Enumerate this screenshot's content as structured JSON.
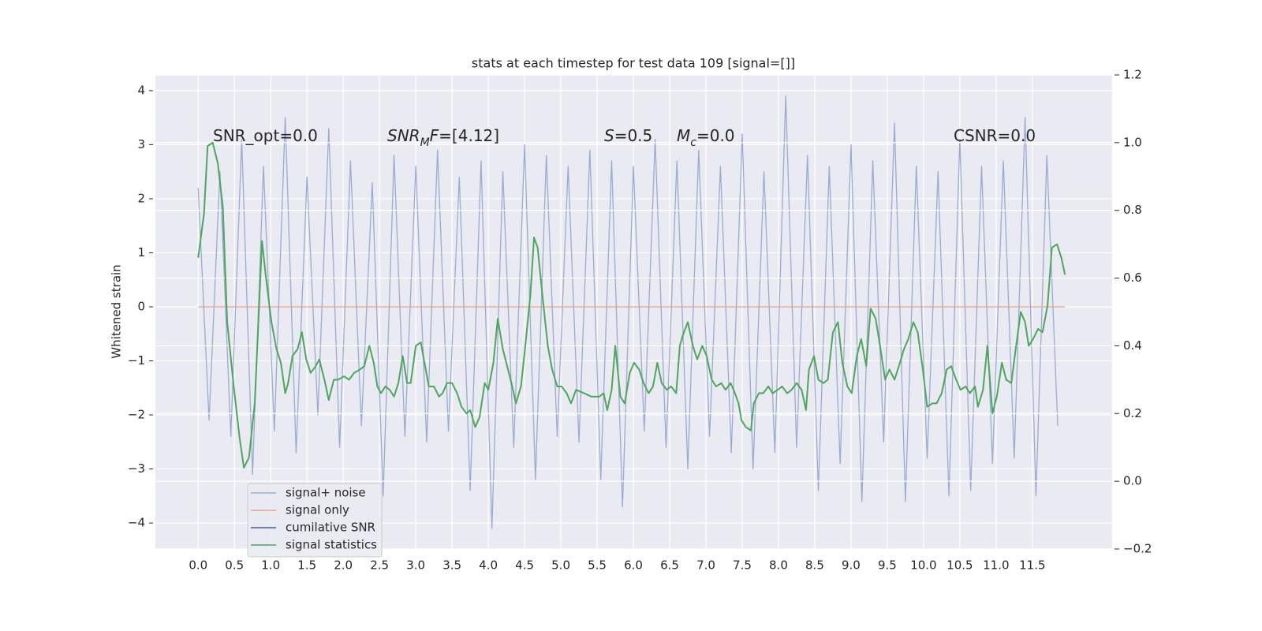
{
  "chart_data": {
    "type": "line",
    "title": "stats at each timestep for test data 109 [signal=[]]",
    "y_label": "Whitened strain",
    "grid": true,
    "legend": "lower left",
    "xlim": [
      -0.59,
      12.6
    ],
    "xticks": [
      {
        "value": 0,
        "label": "0.0"
      },
      0.5,
      {
        "value": 1,
        "label": "1.0"
      },
      1.5,
      {
        "value": 2,
        "label": "2.0"
      },
      2.5,
      {
        "value": 3,
        "label": "3.0"
      },
      3.5,
      {
        "value": 4,
        "label": "4.0"
      },
      4.5,
      {
        "value": 5,
        "label": "5.0"
      },
      5.5,
      {
        "value": 6,
        "label": "6.0"
      },
      6.5,
      {
        "value": 7,
        "label": "7.0"
      },
      7.5,
      {
        "value": 8,
        "label": "8.0"
      },
      8.5,
      {
        "value": 9,
        "label": "9.0"
      },
      9.5,
      {
        "value": 10,
        "label": "10.0"
      },
      10.5,
      {
        "value": 11,
        "label": "11.0"
      },
      11.5
    ],
    "ylim": [
      -4.48,
      4.29
    ],
    "yticks": [
      {
        "value": -4,
        "label": "−4"
      },
      {
        "value": -3,
        "label": "−3"
      },
      {
        "value": -2,
        "label": "−2"
      },
      {
        "value": -1,
        "label": "−1"
      },
      0,
      1,
      2,
      3,
      4
    ],
    "y2lim": [
      -0.2,
      1.2
    ],
    "y2ticks": [
      {
        "value": -0.2,
        "label": "−0.2"
      },
      {
        "value": 0,
        "label": "0.0"
      },
      0.2,
      0.4,
      0.6,
      0.8,
      {
        "value": 1,
        "label": "1.0"
      },
      1.2
    ],
    "annotations": [
      [
        {
          "text": "SNR_opt=0.0"
        }
      ],
      [
        {
          "text": "SNR",
          "style": "italic"
        },
        {
          "text": "M",
          "style": "sub"
        },
        {
          "text": "F",
          "style": "italic"
        },
        {
          "text": "=[4.12]"
        }
      ],
      [
        {
          "text": "S",
          "style": "italic"
        },
        {
          "text": "=0.5"
        }
      ],
      [
        {
          "text": "M",
          "style": "italic"
        },
        {
          "text": "c",
          "style": "sub"
        },
        {
          "text": "=0.0"
        }
      ],
      [
        {
          "text": "CSNR=0.0"
        }
      ]
    ],
    "series": [
      {
        "name": "signal+ noise",
        "color": "#9aabd2",
        "x": [
          0,
          0.15,
          0.3,
          0.45,
          0.6,
          0.75,
          0.9,
          1.05,
          1.2,
          1.35,
          1.5,
          1.65,
          1.8,
          1.95,
          2.1,
          2.25,
          2.4,
          2.55,
          2.7,
          2.85,
          3,
          3.15,
          3.3,
          3.45,
          3.6,
          3.75,
          3.9,
          4.05,
          4.2,
          4.35,
          4.5,
          4.65,
          4.8,
          4.95,
          5.1,
          5.25,
          5.4,
          5.55,
          5.7,
          5.85,
          6,
          6.15,
          6.3,
          6.45,
          6.6,
          6.75,
          6.9,
          7.05,
          7.2,
          7.35,
          7.5,
          7.65,
          7.8,
          7.95,
          8.1,
          8.25,
          8.4,
          8.55,
          8.7,
          8.85,
          9,
          9.15,
          9.3,
          9.45,
          9.6,
          9.75,
          9.9,
          10.05,
          10.2,
          10.35,
          10.5,
          10.65,
          10.8,
          10.95,
          11.1,
          11.25,
          11.4,
          11.55,
          11.7,
          11.85
        ],
        "values": [
          2.2,
          -2.1,
          2.5,
          -2.4,
          3.1,
          -3.1,
          2.6,
          -2.3,
          3.5,
          -2.7,
          2.4,
          -2.0,
          3.3,
          -2.6,
          2.7,
          -2.2,
          2.3,
          -3.5,
          2.8,
          -2.4,
          2.6,
          -2.5,
          2.9,
          -2.3,
          2.4,
          -3.4,
          2.7,
          -4.1,
          2.5,
          -2.6,
          3.0,
          -3.2,
          2.8,
          -2.4,
          2.6,
          -2.5,
          2.9,
          -3.2,
          2.7,
          -3.7,
          2.6,
          -2.3,
          3.1,
          -2.6,
          2.7,
          -3.0,
          2.9,
          -2.4,
          2.6,
          -2.7,
          3.2,
          -3.0,
          2.5,
          -2.7,
          3.9,
          -2.6,
          2.8,
          -3.4,
          2.6,
          -2.9,
          3.0,
          -3.6,
          2.7,
          -2.5,
          3.4,
          -3.6,
          2.6,
          -2.8,
          2.5,
          -3.5,
          3.1,
          -3.4,
          2.6,
          -2.9,
          2.7,
          -2.8,
          3.5,
          -3.5,
          2.8,
          -2.2
        ]
      },
      {
        "name": "signal only",
        "color": "#e2a58e",
        "x": [
          0,
          11.95
        ],
        "values": [
          0,
          0
        ]
      },
      {
        "name": "cumilative SNR",
        "color": "#3d5fa3",
        "x": [],
        "values": []
      },
      {
        "name": "signal statistics",
        "color": "#4fa55e",
        "axis": "y2",
        "x": [
          0,
          0.08,
          0.13,
          0.2,
          0.27,
          0.34,
          0.4,
          0.49,
          0.57,
          0.63,
          0.7,
          0.78,
          0.88,
          0.93,
          1.01,
          1.08,
          1.14,
          1.2,
          1.24,
          1.3,
          1.37,
          1.43,
          1.49,
          1.55,
          1.62,
          1.67,
          1.74,
          1.8,
          1.87,
          1.93,
          2.01,
          2.08,
          2.15,
          2.23,
          2.29,
          2.36,
          2.42,
          2.47,
          2.52,
          2.58,
          2.64,
          2.7,
          2.76,
          2.82,
          2.88,
          2.93,
          3,
          3.07,
          3.12,
          3.18,
          3.25,
          3.32,
          3.37,
          3.43,
          3.5,
          3.57,
          3.63,
          3.7,
          3.75,
          3.82,
          3.88,
          3.95,
          4,
          4.07,
          4.13,
          4.2,
          4.26,
          4.33,
          4.38,
          4.45,
          4.51,
          4.58,
          4.63,
          4.68,
          4.75,
          4.82,
          4.88,
          4.95,
          5.01,
          5.08,
          5.14,
          5.21,
          5.32,
          5.42,
          5.53,
          5.59,
          5.64,
          5.7,
          5.75,
          5.82,
          5.88,
          5.95,
          6.01,
          6.08,
          6.14,
          6.21,
          6.27,
          6.33,
          6.39,
          6.46,
          6.52,
          6.59,
          6.64,
          6.68,
          6.75,
          6.82,
          6.88,
          6.95,
          7.01,
          7.08,
          7.14,
          7.21,
          7.27,
          7.34,
          7.4,
          7.45,
          7.49,
          7.55,
          7.62,
          7.66,
          7.73,
          7.79,
          7.86,
          7.92,
          7.99,
          8.05,
          8.12,
          8.18,
          8.25,
          8.32,
          8.38,
          8.42,
          8.49,
          8.55,
          8.62,
          8.68,
          8.75,
          8.82,
          8.88,
          8.95,
          9.01,
          9.08,
          9.14,
          9.21,
          9.27,
          9.34,
          9.4,
          9.47,
          9.53,
          9.6,
          9.66,
          9.73,
          9.79,
          9.86,
          9.92,
          9.99,
          10.05,
          10.12,
          10.18,
          10.25,
          10.32,
          10.38,
          10.45,
          10.51,
          10.58,
          10.64,
          10.71,
          10.75,
          10.82,
          10.88,
          10.95,
          11.01,
          11.08,
          11.14,
          11.21,
          11.27,
          11.34,
          11.4,
          11.45,
          11.51,
          11.58,
          11.64,
          11.71,
          11.77,
          11.84,
          11.9,
          11.95
        ],
        "values": [
          0.66,
          0.79,
          0.99,
          1.0,
          0.94,
          0.81,
          0.47,
          0.28,
          0.13,
          0.04,
          0.07,
          0.23,
          0.71,
          0.61,
          0.47,
          0.39,
          0.35,
          0.26,
          0.29,
          0.37,
          0.39,
          0.44,
          0.36,
          0.32,
          0.34,
          0.36,
          0.3,
          0.24,
          0.3,
          0.3,
          0.31,
          0.3,
          0.32,
          0.33,
          0.34,
          0.4,
          0.35,
          0.28,
          0.26,
          0.28,
          0.27,
          0.25,
          0.29,
          0.37,
          0.29,
          0.29,
          0.4,
          0.41,
          0.35,
          0.28,
          0.28,
          0.25,
          0.26,
          0.29,
          0.29,
          0.26,
          0.22,
          0.2,
          0.21,
          0.16,
          0.19,
          0.29,
          0.27,
          0.35,
          0.48,
          0.39,
          0.34,
          0.28,
          0.23,
          0.28,
          0.4,
          0.55,
          0.72,
          0.69,
          0.54,
          0.4,
          0.33,
          0.28,
          0.28,
          0.26,
          0.23,
          0.27,
          0.26,
          0.25,
          0.25,
          0.26,
          0.21,
          0.27,
          0.4,
          0.25,
          0.23,
          0.32,
          0.35,
          0.33,
          0.29,
          0.26,
          0.28,
          0.35,
          0.29,
          0.27,
          0.28,
          0.26,
          0.4,
          0.43,
          0.47,
          0.4,
          0.36,
          0.4,
          0.37,
          0.3,
          0.28,
          0.29,
          0.27,
          0.29,
          0.26,
          0.23,
          0.18,
          0.16,
          0.15,
          0.23,
          0.26,
          0.26,
          0.28,
          0.26,
          0.27,
          0.28,
          0.26,
          0.27,
          0.29,
          0.27,
          0.21,
          0.33,
          0.37,
          0.3,
          0.29,
          0.3,
          0.44,
          0.47,
          0.35,
          0.28,
          0.26,
          0.37,
          0.42,
          0.34,
          0.51,
          0.48,
          0.4,
          0.3,
          0.33,
          0.3,
          0.34,
          0.39,
          0.42,
          0.47,
          0.44,
          0.33,
          0.22,
          0.23,
          0.23,
          0.26,
          0.33,
          0.34,
          0.3,
          0.27,
          0.28,
          0.26,
          0.28,
          0.22,
          0.27,
          0.4,
          0.2,
          0.25,
          0.35,
          0.3,
          0.29,
          0.39,
          0.5,
          0.47,
          0.4,
          0.42,
          0.45,
          0.44,
          0.52,
          0.69,
          0.7,
          0.66,
          0.61
        ]
      }
    ]
  }
}
